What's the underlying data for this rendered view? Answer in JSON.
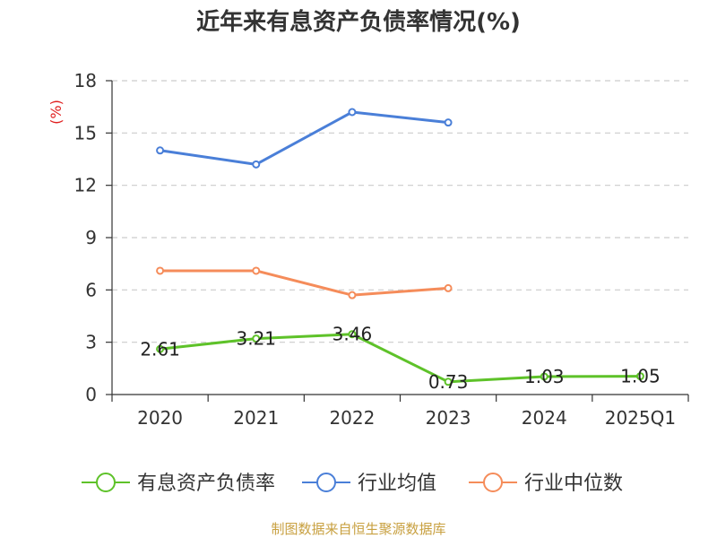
{
  "chart_data": {
    "type": "line",
    "title": "近年来有息资产负债率情况(%)",
    "ylabel": "(%)",
    "xlabel": "",
    "categories": [
      "2020",
      "2021",
      "2022",
      "2023",
      "2024",
      "2025Q1"
    ],
    "ylim": [
      0,
      18
    ],
    "yticks": [
      0,
      3,
      6,
      9,
      12,
      15,
      18
    ],
    "grid": true,
    "legend_position": "bottom",
    "series": [
      {
        "name": "有息资产负债率",
        "color": "#5ec229",
        "values": [
          2.61,
          3.21,
          3.46,
          0.73,
          1.03,
          1.05
        ],
        "labels": [
          "2.61",
          "3.21",
          "3.46",
          "0.73",
          "1.03",
          "1.05"
        ]
      },
      {
        "name": "行业均值",
        "color": "#4a7fd8",
        "values": [
          14.0,
          13.2,
          16.2,
          15.6,
          null,
          null
        ]
      },
      {
        "name": "行业中位数",
        "color": "#f58c5a",
        "values": [
          7.1,
          7.1,
          5.7,
          6.1,
          null,
          null
        ]
      }
    ],
    "source": "制图数据来自恒生聚源数据库"
  }
}
